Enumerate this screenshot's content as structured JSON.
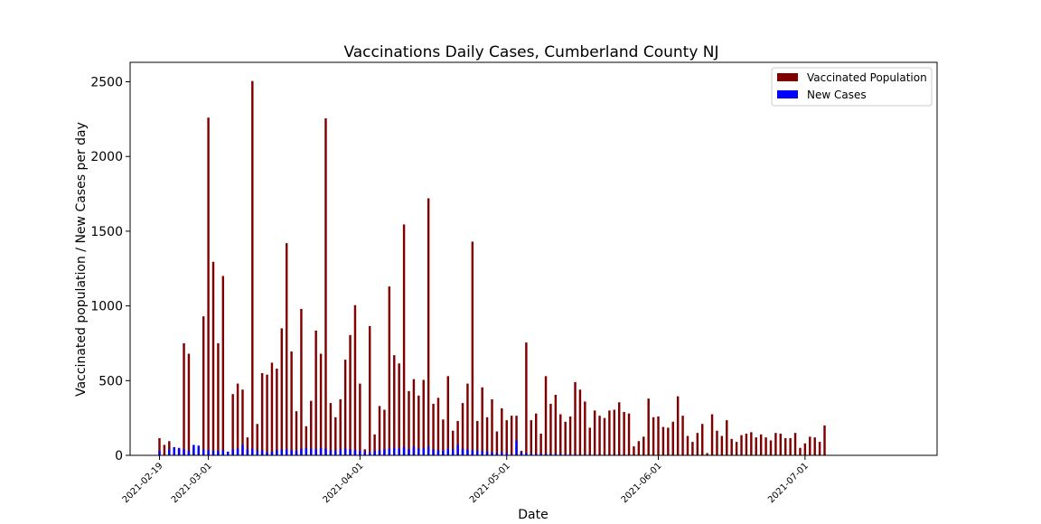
{
  "chart_data": {
    "type": "bar",
    "title": "Vaccinations Daily Cases, Cumberland County NJ",
    "xlabel": "Date",
    "ylabel": "Vaccinated population / New Cases per day",
    "ylim": [
      0,
      2630
    ],
    "yticks": [
      0,
      500,
      1000,
      1500,
      2000,
      2500
    ],
    "xlim": [
      "2021-02-13",
      "2021-07-28"
    ],
    "xticks": [
      "2021-02-19",
      "2021-03-01",
      "2021-04-01",
      "2021-05-01",
      "2021-06-01",
      "2021-07-01"
    ],
    "legend_position": "top-right",
    "grid": false,
    "colors": {
      "vaccinated": "#800000",
      "cases": "#0000ff"
    },
    "series": [
      {
        "name": "Vaccinated Population",
        "points": [
          [
            "2021-02-19",
            115
          ],
          [
            "2021-02-20",
            70
          ],
          [
            "2021-02-21",
            95
          ],
          [
            "2021-02-22",
            50
          ],
          [
            "2021-02-23",
            40
          ],
          [
            "2021-02-24",
            750
          ],
          [
            "2021-02-25",
            680
          ],
          [
            "2021-02-26",
            50
          ],
          [
            "2021-02-27",
            40
          ],
          [
            "2021-02-28",
            930
          ],
          [
            "2021-03-01",
            2260
          ],
          [
            "2021-03-02",
            1295
          ],
          [
            "2021-03-03",
            750
          ],
          [
            "2021-03-04",
            1200
          ],
          [
            "2021-03-05",
            20
          ],
          [
            "2021-03-06",
            410
          ],
          [
            "2021-03-07",
            480
          ],
          [
            "2021-03-08",
            440
          ],
          [
            "2021-03-09",
            120
          ],
          [
            "2021-03-10",
            2505
          ],
          [
            "2021-03-11",
            210
          ],
          [
            "2021-03-12",
            550
          ],
          [
            "2021-03-13",
            540
          ],
          [
            "2021-03-14",
            620
          ],
          [
            "2021-03-15",
            580
          ],
          [
            "2021-03-16",
            850
          ],
          [
            "2021-03-17",
            1420
          ],
          [
            "2021-03-18",
            695
          ],
          [
            "2021-03-19",
            295
          ],
          [
            "2021-03-20",
            980
          ],
          [
            "2021-03-21",
            195
          ],
          [
            "2021-03-22",
            365
          ],
          [
            "2021-03-23",
            835
          ],
          [
            "2021-03-24",
            680
          ],
          [
            "2021-03-25",
            2255
          ],
          [
            "2021-03-26",
            350
          ],
          [
            "2021-03-27",
            255
          ],
          [
            "2021-03-28",
            375
          ],
          [
            "2021-03-29",
            640
          ],
          [
            "2021-03-30",
            805
          ],
          [
            "2021-03-31",
            1005
          ],
          [
            "2021-04-01",
            480
          ],
          [
            "2021-04-02",
            40
          ],
          [
            "2021-04-03",
            865
          ],
          [
            "2021-04-04",
            140
          ],
          [
            "2021-04-05",
            330
          ],
          [
            "2021-04-06",
            305
          ],
          [
            "2021-04-07",
            1130
          ],
          [
            "2021-04-08",
            670
          ],
          [
            "2021-04-09",
            615
          ],
          [
            "2021-04-10",
            1545
          ],
          [
            "2021-04-11",
            430
          ],
          [
            "2021-04-12",
            510
          ],
          [
            "2021-04-13",
            400
          ],
          [
            "2021-04-14",
            505
          ],
          [
            "2021-04-15",
            1720
          ],
          [
            "2021-04-16",
            345
          ],
          [
            "2021-04-17",
            385
          ],
          [
            "2021-04-18",
            240
          ],
          [
            "2021-04-19",
            530
          ],
          [
            "2021-04-20",
            165
          ],
          [
            "2021-04-21",
            230
          ],
          [
            "2021-04-22",
            350
          ],
          [
            "2021-04-23",
            480
          ],
          [
            "2021-04-24",
            1430
          ],
          [
            "2021-04-25",
            230
          ],
          [
            "2021-04-26",
            455
          ],
          [
            "2021-04-27",
            255
          ],
          [
            "2021-04-28",
            375
          ],
          [
            "2021-04-29",
            160
          ],
          [
            "2021-04-30",
            315
          ],
          [
            "2021-05-01",
            235
          ],
          [
            "2021-05-02",
            265
          ],
          [
            "2021-05-03",
            265
          ],
          [
            "2021-05-04",
            30
          ],
          [
            "2021-05-05",
            755
          ],
          [
            "2021-05-06",
            235
          ],
          [
            "2021-05-07",
            280
          ],
          [
            "2021-05-08",
            145
          ],
          [
            "2021-05-09",
            530
          ],
          [
            "2021-05-10",
            345
          ],
          [
            "2021-05-11",
            405
          ],
          [
            "2021-05-12",
            275
          ],
          [
            "2021-05-13",
            225
          ],
          [
            "2021-05-14",
            260
          ],
          [
            "2021-05-15",
            490
          ],
          [
            "2021-05-16",
            440
          ],
          [
            "2021-05-17",
            360
          ],
          [
            "2021-05-18",
            185
          ],
          [
            "2021-05-19",
            300
          ],
          [
            "2021-05-20",
            265
          ],
          [
            "2021-05-21",
            250
          ],
          [
            "2021-05-22",
            300
          ],
          [
            "2021-05-23",
            305
          ],
          [
            "2021-05-24",
            355
          ],
          [
            "2021-05-25",
            290
          ],
          [
            "2021-05-26",
            280
          ],
          [
            "2021-05-27",
            60
          ],
          [
            "2021-05-28",
            95
          ],
          [
            "2021-05-29",
            125
          ],
          [
            "2021-05-30",
            380
          ],
          [
            "2021-05-31",
            255
          ],
          [
            "2021-06-01",
            260
          ],
          [
            "2021-06-02",
            190
          ],
          [
            "2021-06-03",
            185
          ],
          [
            "2021-06-04",
            225
          ],
          [
            "2021-06-05",
            395
          ],
          [
            "2021-06-06",
            265
          ],
          [
            "2021-06-07",
            130
          ],
          [
            "2021-06-08",
            90
          ],
          [
            "2021-06-09",
            150
          ],
          [
            "2021-06-10",
            210
          ],
          [
            "2021-06-11",
            15
          ],
          [
            "2021-06-12",
            275
          ],
          [
            "2021-06-13",
            165
          ],
          [
            "2021-06-14",
            130
          ],
          [
            "2021-06-15",
            235
          ],
          [
            "2021-06-16",
            110
          ],
          [
            "2021-06-17",
            90
          ],
          [
            "2021-06-18",
            135
          ],
          [
            "2021-06-19",
            145
          ],
          [
            "2021-06-20",
            155
          ],
          [
            "2021-06-21",
            120
          ],
          [
            "2021-06-22",
            140
          ],
          [
            "2021-06-23",
            120
          ],
          [
            "2021-06-24",
            100
          ],
          [
            "2021-06-25",
            150
          ],
          [
            "2021-06-26",
            145
          ],
          [
            "2021-06-27",
            115
          ],
          [
            "2021-06-28",
            115
          ],
          [
            "2021-06-29",
            150
          ],
          [
            "2021-06-30",
            50
          ],
          [
            "2021-07-01",
            80
          ],
          [
            "2021-07-02",
            125
          ],
          [
            "2021-07-03",
            120
          ],
          [
            "2021-07-04",
            90
          ],
          [
            "2021-07-05",
            200
          ]
        ]
      },
      {
        "name": "New Cases",
        "points": [
          [
            "2021-02-19",
            30
          ],
          [
            "2021-02-21",
            40
          ],
          [
            "2021-02-22",
            55
          ],
          [
            "2021-02-23",
            50
          ],
          [
            "2021-02-24",
            40
          ],
          [
            "2021-02-25",
            30
          ],
          [
            "2021-02-26",
            70
          ],
          [
            "2021-02-27",
            65
          ],
          [
            "2021-02-28",
            40
          ],
          [
            "2021-03-01",
            35
          ],
          [
            "2021-03-02",
            30
          ],
          [
            "2021-03-03",
            30
          ],
          [
            "2021-03-04",
            35
          ],
          [
            "2021-03-05",
            25
          ],
          [
            "2021-03-06",
            40
          ],
          [
            "2021-03-07",
            45
          ],
          [
            "2021-03-08",
            70
          ],
          [
            "2021-03-09",
            40
          ],
          [
            "2021-03-10",
            45
          ],
          [
            "2021-03-11",
            30
          ],
          [
            "2021-03-12",
            35
          ],
          [
            "2021-03-13",
            20
          ],
          [
            "2021-03-14",
            25
          ],
          [
            "2021-03-15",
            35
          ],
          [
            "2021-03-16",
            40
          ],
          [
            "2021-03-17",
            40
          ],
          [
            "2021-03-18",
            35
          ],
          [
            "2021-03-19",
            30
          ],
          [
            "2021-03-20",
            45
          ],
          [
            "2021-03-21",
            50
          ],
          [
            "2021-03-22",
            45
          ],
          [
            "2021-03-23",
            40
          ],
          [
            "2021-03-24",
            50
          ],
          [
            "2021-03-25",
            45
          ],
          [
            "2021-03-26",
            35
          ],
          [
            "2021-03-27",
            30
          ],
          [
            "2021-03-28",
            40
          ],
          [
            "2021-03-29",
            45
          ],
          [
            "2021-03-30",
            40
          ],
          [
            "2021-03-31",
            35
          ],
          [
            "2021-04-01",
            30
          ],
          [
            "2021-04-02",
            25
          ],
          [
            "2021-04-03",
            20
          ],
          [
            "2021-04-04",
            30
          ],
          [
            "2021-04-05",
            35
          ],
          [
            "2021-04-06",
            40
          ],
          [
            "2021-04-07",
            45
          ],
          [
            "2021-04-08",
            50
          ],
          [
            "2021-04-09",
            45
          ],
          [
            "2021-04-10",
            55
          ],
          [
            "2021-04-11",
            40
          ],
          [
            "2021-04-12",
            60
          ],
          [
            "2021-04-13",
            45
          ],
          [
            "2021-04-14",
            50
          ],
          [
            "2021-04-15",
            60
          ],
          [
            "2021-04-16",
            40
          ],
          [
            "2021-04-17",
            35
          ],
          [
            "2021-04-18",
            30
          ],
          [
            "2021-04-19",
            45
          ],
          [
            "2021-04-20",
            40
          ],
          [
            "2021-04-21",
            70
          ],
          [
            "2021-04-22",
            45
          ],
          [
            "2021-04-23",
            40
          ],
          [
            "2021-04-24",
            35
          ],
          [
            "2021-04-25",
            30
          ],
          [
            "2021-04-26",
            30
          ],
          [
            "2021-04-27",
            25
          ],
          [
            "2021-04-28",
            20
          ],
          [
            "2021-04-29",
            15
          ],
          [
            "2021-04-30",
            20
          ],
          [
            "2021-05-01",
            15
          ],
          [
            "2021-05-02",
            10
          ],
          [
            "2021-05-03",
            100
          ],
          [
            "2021-05-04",
            20
          ],
          [
            "2021-05-05",
            15
          ],
          [
            "2021-05-06",
            10
          ],
          [
            "2021-05-07",
            10
          ],
          [
            "2021-05-08",
            10
          ],
          [
            "2021-05-09",
            8
          ],
          [
            "2021-05-10",
            8
          ],
          [
            "2021-05-11",
            10
          ],
          [
            "2021-05-12",
            8
          ],
          [
            "2021-05-13",
            8
          ],
          [
            "2021-05-14",
            6
          ],
          [
            "2021-05-15",
            6
          ],
          [
            "2021-05-16",
            5
          ],
          [
            "2021-05-17",
            5
          ],
          [
            "2021-05-18",
            5
          ],
          [
            "2021-05-19",
            5
          ],
          [
            "2021-05-20",
            5
          ],
          [
            "2021-05-21",
            4
          ],
          [
            "2021-05-22",
            4
          ],
          [
            "2021-05-23",
            4
          ],
          [
            "2021-05-24",
            4
          ],
          [
            "2021-05-25",
            4
          ],
          [
            "2021-05-26",
            3
          ],
          [
            "2021-05-27",
            3
          ],
          [
            "2021-05-28",
            3
          ],
          [
            "2021-05-29",
            3
          ],
          [
            "2021-05-30",
            3
          ],
          [
            "2021-05-31",
            3
          ],
          [
            "2021-06-01",
            3
          ],
          [
            "2021-06-02",
            3
          ],
          [
            "2021-06-03",
            2
          ],
          [
            "2021-06-04",
            2
          ],
          [
            "2021-06-05",
            2
          ],
          [
            "2021-06-06",
            2
          ],
          [
            "2021-06-07",
            2
          ],
          [
            "2021-06-08",
            2
          ],
          [
            "2021-06-09",
            2
          ],
          [
            "2021-06-10",
            2
          ],
          [
            "2021-06-11",
            2
          ],
          [
            "2021-06-12",
            2
          ],
          [
            "2021-06-13",
            2
          ],
          [
            "2021-06-14",
            2
          ],
          [
            "2021-06-15",
            2
          ],
          [
            "2021-06-16",
            2
          ],
          [
            "2021-06-17",
            2
          ],
          [
            "2021-06-18",
            2
          ],
          [
            "2021-06-19",
            2
          ],
          [
            "2021-06-20",
            2
          ],
          [
            "2021-06-21",
            2
          ],
          [
            "2021-06-22",
            2
          ],
          [
            "2021-06-23",
            2
          ],
          [
            "2021-06-24",
            2
          ],
          [
            "2021-06-25",
            2
          ],
          [
            "2021-06-26",
            2
          ],
          [
            "2021-06-27",
            2
          ],
          [
            "2021-06-28",
            2
          ],
          [
            "2021-06-29",
            2
          ],
          [
            "2021-06-30",
            2
          ],
          [
            "2021-07-01",
            2
          ],
          [
            "2021-07-02",
            2
          ],
          [
            "2021-07-03",
            2
          ],
          [
            "2021-07-04",
            2
          ],
          [
            "2021-07-05",
            2
          ]
        ]
      }
    ]
  }
}
